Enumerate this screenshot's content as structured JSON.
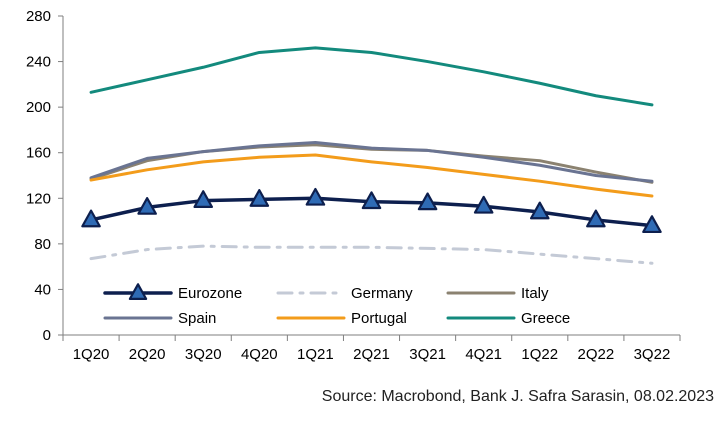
{
  "chart_data": {
    "type": "line",
    "categories": [
      "1Q20",
      "2Q20",
      "3Q20",
      "4Q20",
      "1Q21",
      "2Q21",
      "3Q21",
      "4Q21",
      "1Q22",
      "2Q22",
      "3Q22"
    ],
    "ylim": [
      0,
      280
    ],
    "yticks": [
      0,
      40,
      80,
      120,
      160,
      200,
      240,
      280
    ],
    "grid": false,
    "legend_position": "bottom-left inside plot",
    "series": [
      {
        "name": "Eurozone",
        "color": "#0d1f4e",
        "style": "solid-triangle-markers",
        "values": [
          101,
          112,
          118,
          119,
          120,
          117,
          116,
          113,
          108,
          101,
          96
        ]
      },
      {
        "name": "Germany",
        "color": "#c4cad6",
        "style": "dash-dot",
        "values": [
          67,
          75,
          78,
          77,
          77,
          77,
          76,
          75,
          71,
          67,
          63
        ]
      },
      {
        "name": "Italy",
        "color": "#8b8270",
        "style": "solid",
        "values": [
          137,
          153,
          161,
          165,
          167,
          163,
          162,
          157,
          153,
          143,
          134
        ]
      },
      {
        "name": "Spain",
        "color": "#6a7492",
        "style": "solid",
        "values": [
          138,
          155,
          161,
          166,
          169,
          164,
          162,
          156,
          149,
          140,
          135
        ]
      },
      {
        "name": "Portugal",
        "color": "#f39c1b",
        "style": "solid",
        "values": [
          136,
          145,
          152,
          156,
          158,
          152,
          147,
          141,
          135,
          128,
          122
        ]
      },
      {
        "name": "Greece",
        "color": "#138a7d",
        "style": "solid",
        "values": [
          213,
          224,
          235,
          248,
          252,
          248,
          240,
          231,
          221,
          210,
          202
        ]
      }
    ]
  },
  "source_text": "Source: Macrobond, Bank J. Safra Sarasin, 08.02.2023"
}
